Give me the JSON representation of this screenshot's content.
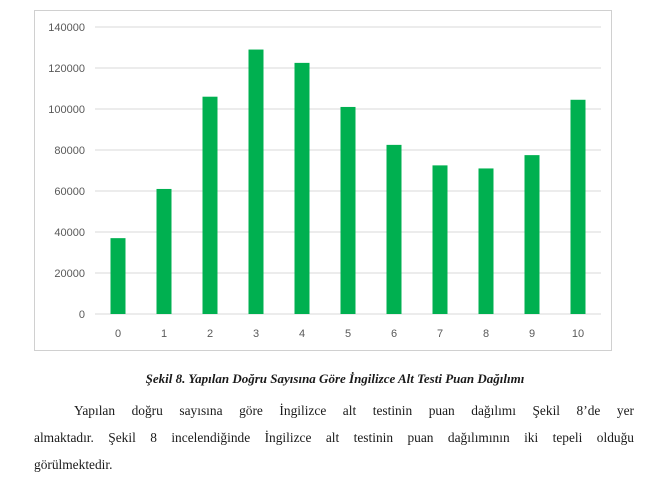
{
  "chart_data": {
    "type": "bar",
    "categories": [
      "0",
      "1",
      "2",
      "3",
      "4",
      "5",
      "6",
      "7",
      "8",
      "9",
      "10"
    ],
    "values": [
      37000,
      61000,
      106000,
      129000,
      122500,
      101000,
      82500,
      72500,
      71000,
      77500,
      104500
    ],
    "y_ticks": [
      "0",
      "20000",
      "40000",
      "60000",
      "80000",
      "100000",
      "120000",
      "140000"
    ],
    "ylim": [
      0,
      140000
    ],
    "grid": true,
    "bar_color": "#00b050"
  },
  "caption": "Şekil 8. Yapılan Doğru Sayısına Göre İngilizce Alt Testi Puan Dağılımı",
  "paragraph": {
    "line1": "Yapılan doğru sayısına göre İngilizce alt testinin puan dağılımı Şekil 8’de yer",
    "line2": "almaktadır. Şekil 8 incelendiğinde İngilizce alt testinin puan dağılımının iki tepeli olduğu",
    "line3": "görülmektedir."
  }
}
